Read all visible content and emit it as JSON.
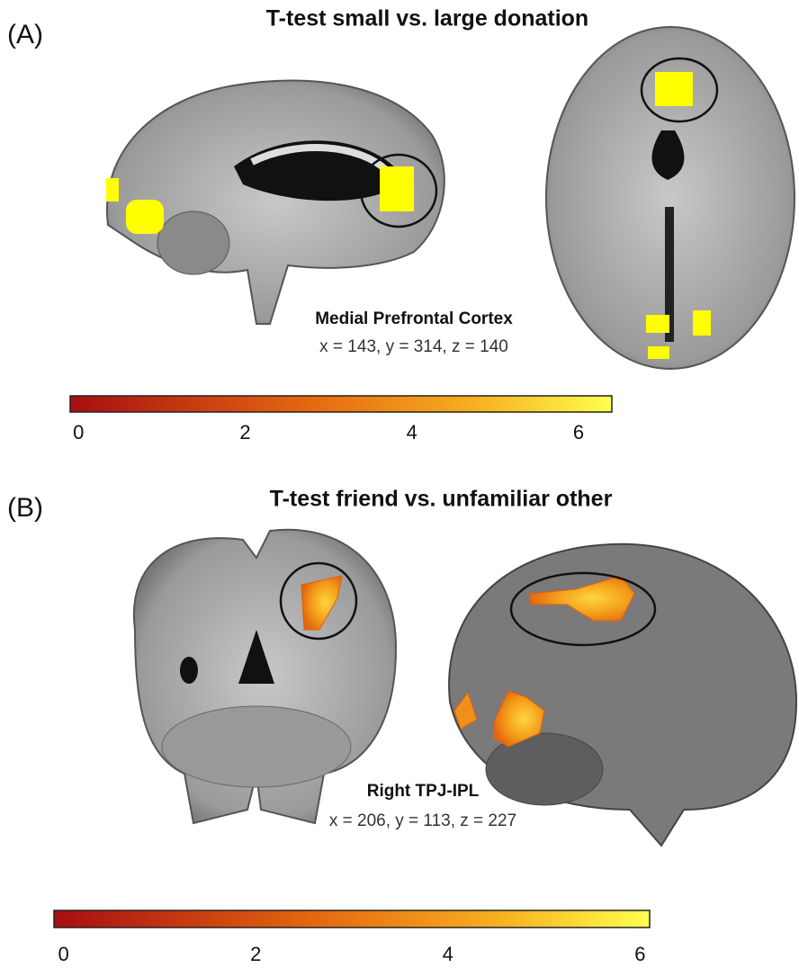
{
  "panels": [
    {
      "label": "(A)",
      "title": "T-test small vs. large donation",
      "region": "Medial Prefrontal Cortex",
      "coordinates": "x = 143, y = 314, z = 140",
      "colorbar": {
        "lim": [
          -0.1,
          6.4
        ],
        "ticks": [
          0,
          2,
          4,
          6
        ]
      }
    },
    {
      "label": "(B)",
      "title": "T-test friend vs. unfamiliar other",
      "region": "Right TPJ-IPL",
      "coordinates": "x = 206, y = 113, z = 227",
      "colorbar": {
        "lim": [
          -0.1,
          6.1
        ],
        "ticks": [
          0,
          2,
          4,
          6
        ]
      }
    }
  ]
}
